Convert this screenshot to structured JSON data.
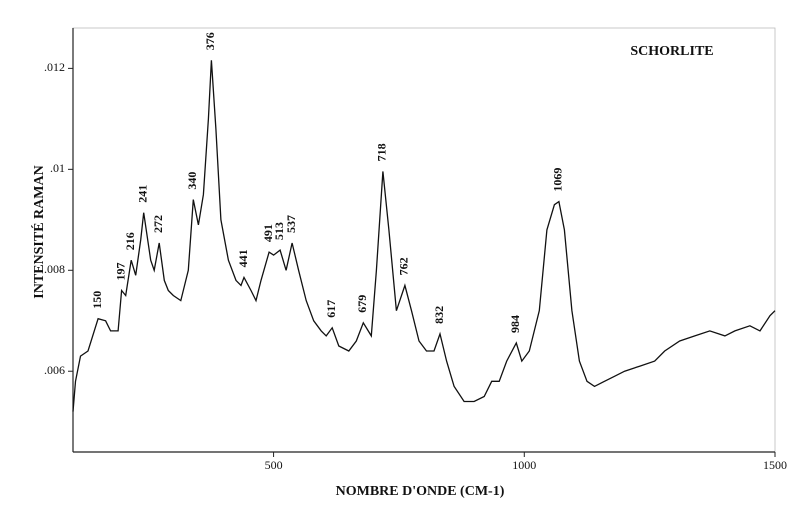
{
  "chart_data": {
    "type": "line",
    "title": "SCHORLITE",
    "xlabel": "NOMBRE D'ONDE (CM-1)",
    "ylabel": "INTENSITÉ RAMAN",
    "x": [
      100,
      105,
      115,
      130,
      150,
      165,
      175,
      190,
      197,
      205,
      216,
      225,
      235,
      241,
      255,
      262,
      272,
      282,
      290,
      300,
      315,
      330,
      340,
      350,
      360,
      370,
      376,
      385,
      395,
      410,
      425,
      435,
      441,
      455,
      465,
      475,
      491,
      500,
      513,
      525,
      537,
      550,
      565,
      580,
      595,
      605,
      617,
      630,
      650,
      665,
      679,
      695,
      705,
      718,
      730,
      745,
      762,
      775,
      790,
      805,
      820,
      832,
      845,
      860,
      880,
      900,
      920,
      935,
      950,
      965,
      984,
      995,
      1010,
      1030,
      1045,
      1060,
      1069,
      1080,
      1095,
      1110,
      1125,
      1140,
      1160,
      1180,
      1200,
      1230,
      1260,
      1280,
      1310,
      1340,
      1370,
      1400,
      1420,
      1450,
      1470,
      1490,
      1500
    ],
    "y": [
      0.0052,
      0.0058,
      0.0063,
      0.0064,
      0.00704,
      0.007,
      0.0068,
      0.0068,
      0.0076,
      0.0075,
      0.0082,
      0.0079,
      0.0086,
      0.00914,
      0.0082,
      0.008,
      0.00854,
      0.0078,
      0.0076,
      0.0075,
      0.0074,
      0.008,
      0.0094,
      0.0089,
      0.0095,
      0.011,
      0.01216,
      0.0108,
      0.009,
      0.0082,
      0.0078,
      0.0077,
      0.00786,
      0.0076,
      0.0074,
      0.0078,
      0.00836,
      0.0083,
      0.0084,
      0.008,
      0.00854,
      0.008,
      0.0074,
      0.007,
      0.0068,
      0.0067,
      0.00686,
      0.0065,
      0.0064,
      0.0066,
      0.00696,
      0.0067,
      0.008,
      0.00996,
      0.0088,
      0.0072,
      0.0077,
      0.0072,
      0.0066,
      0.0064,
      0.0064,
      0.00674,
      0.0062,
      0.0057,
      0.0054,
      0.0054,
      0.0055,
      0.0058,
      0.0058,
      0.0062,
      0.00656,
      0.0062,
      0.0064,
      0.0072,
      0.0088,
      0.0093,
      0.00936,
      0.0088,
      0.0072,
      0.0062,
      0.0058,
      0.0057,
      0.0058,
      0.0059,
      0.006,
      0.0061,
      0.0062,
      0.0064,
      0.0066,
      0.0067,
      0.0068,
      0.0067,
      0.0068,
      0.0069,
      0.0068,
      0.0071,
      0.0072
    ],
    "color": "#111111",
    "peaks": [
      150,
      197,
      216,
      241,
      272,
      340,
      376,
      441,
      491,
      513,
      537,
      617,
      679,
      718,
      762,
      832,
      984,
      1069
    ],
    "xlim": [
      100,
      1500
    ],
    "xticks": [
      500,
      1000,
      1500
    ],
    "ylim": [
      0.0044,
      0.0128
    ],
    "yticks": [
      {
        "value": 0.006,
        "label": ".006"
      },
      {
        "value": 0.008,
        "label": ".008"
      },
      {
        "value": 0.01,
        "label": ".01"
      },
      {
        "value": 0.012,
        "label": ".012"
      }
    ]
  }
}
